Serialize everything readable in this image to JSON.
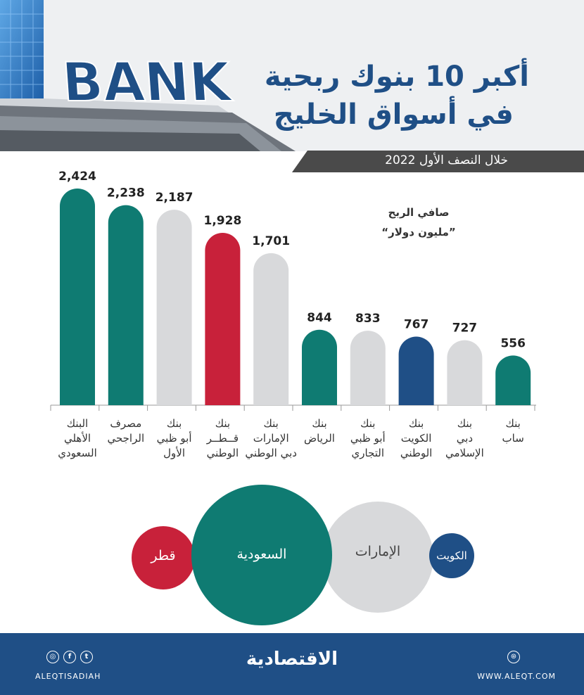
{
  "header": {
    "title_line1": "أكبر 10 بنوك ربحية",
    "title_line2": "في أسواق الخليج",
    "period": "خلال النصف الأول 2022",
    "sign_text": "BANK"
  },
  "chart_data": {
    "type": "bar",
    "unit_line1": "صافي الربح",
    "unit_line2": "”مليون دولار“",
    "categories": [
      [
        "البنك",
        "الأهلي",
        "السعودي"
      ],
      [
        "مصرف",
        "الراجحي"
      ],
      [
        "بنك",
        "أبو ظبي",
        "الأول"
      ],
      [
        "بنك",
        "قــطــر",
        "الوطني"
      ],
      [
        "بنك",
        "الإمارات",
        "دبي الوطني"
      ],
      [
        "بنك",
        "الرياض"
      ],
      [
        "بنك",
        "أبو ظبي",
        "التجاري"
      ],
      [
        "بنك",
        "الكويت",
        "الوطني"
      ],
      [
        "بنك",
        "دبي",
        "الإسلامي"
      ],
      [
        "بنك",
        "ساب"
      ]
    ],
    "values": [
      2424,
      2238,
      2187,
      1928,
      1701,
      844,
      833,
      767,
      727,
      556
    ],
    "value_labels": [
      "2,424",
      "2,238",
      "2,187",
      "1,928",
      "1,701",
      "844",
      "833",
      "767",
      "727",
      "556"
    ],
    "country": [
      "saudi",
      "saudi",
      "uae",
      "qatar",
      "uae",
      "saudi",
      "uae",
      "kuwait",
      "uae",
      "saudi"
    ],
    "ylim": [
      0,
      2424
    ]
  },
  "colors": {
    "saudi": "#0f7b72",
    "uae": "#d8d9db",
    "qatar": "#c8213a",
    "kuwait": "#1f4f86",
    "axis": "#999999",
    "title": "#1f4f86"
  },
  "bubbles": [
    {
      "label": "قطر",
      "country": "qatar"
    },
    {
      "label": "السعودية",
      "country": "saudi"
    },
    {
      "label": "الإمارات",
      "country": "uae"
    },
    {
      "label": "الكويت",
      "country": "kuwait"
    }
  ],
  "footer": {
    "brand": "الاقتصادية",
    "handle": "ALEQTISADIAH",
    "website": "WWW.ALEQT.COM",
    "social_icons": [
      "instagram-icon",
      "facebook-icon",
      "twitter-icon"
    ]
  }
}
